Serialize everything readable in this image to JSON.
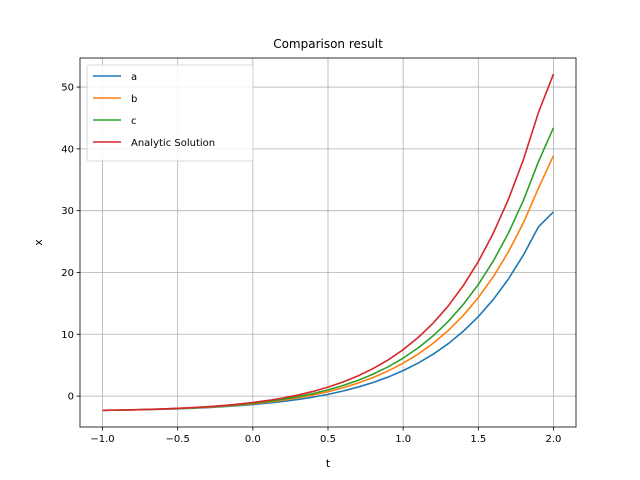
{
  "chart_data": {
    "type": "line",
    "title": "Comparison result",
    "xlabel": "t",
    "ylabel": "x",
    "xlim": [
      -1.15,
      2.15
    ],
    "ylim": [
      -5.0,
      54.7
    ],
    "xticks": [
      -1.0,
      -0.5,
      0.0,
      0.5,
      1.0,
      1.5,
      2.0
    ],
    "xtick_labels": [
      "−1.0",
      "−0.5",
      "0.0",
      "0.5",
      "1.0",
      "1.5",
      "2.0"
    ],
    "yticks": [
      0,
      10,
      20,
      30,
      40,
      50
    ],
    "ytick_labels": [
      "0",
      "10",
      "20",
      "30",
      "40",
      "50"
    ],
    "grid": true,
    "legend_position": "top-left",
    "series": [
      {
        "name": "a",
        "color": "#1f77b4",
        "x": [
          -1.0,
          -0.9,
          -0.8,
          -0.7,
          -0.6,
          -0.5,
          -0.4,
          -0.3,
          -0.2,
          -0.1,
          0.0,
          0.1,
          0.2,
          0.3,
          0.4,
          0.5,
          0.6,
          0.7,
          0.8,
          0.9,
          1.0,
          1.1,
          1.2,
          1.3,
          1.4,
          1.5,
          1.6,
          1.7,
          1.8,
          1.9,
          2.0
        ],
        "values": [
          -2.3,
          -2.27,
          -2.23,
          -2.18,
          -2.12,
          -2.05,
          -1.96,
          -1.85,
          -1.72,
          -1.56,
          -1.37,
          -1.14,
          -0.87,
          -0.55,
          -0.17,
          0.28,
          0.82,
          1.46,
          2.2,
          3.08,
          4.12,
          5.34,
          6.78,
          8.48,
          10.49,
          12.85,
          15.64,
          18.93,
          22.81,
          27.38,
          29.8
        ]
      },
      {
        "name": "b",
        "color": "#ff7f0e",
        "x": [
          -1.0,
          -0.9,
          -0.8,
          -0.7,
          -0.6,
          -0.5,
          -0.4,
          -0.3,
          -0.2,
          -0.1,
          0.0,
          0.1,
          0.2,
          0.3,
          0.4,
          0.5,
          0.6,
          0.7,
          0.8,
          0.9,
          1.0,
          1.1,
          1.2,
          1.3,
          1.4,
          1.5,
          1.6,
          1.7,
          1.8,
          1.9,
          2.0
        ],
        "values": [
          -2.3,
          -2.27,
          -2.23,
          -2.17,
          -2.1,
          -2.02,
          -1.92,
          -1.8,
          -1.65,
          -1.47,
          -1.25,
          -0.98,
          -0.66,
          -0.28,
          0.17,
          0.71,
          1.35,
          2.11,
          3.01,
          4.07,
          5.32,
          6.8,
          8.55,
          10.61,
          13.05,
          15.93,
          19.32,
          23.32,
          28.04,
          33.61,
          38.9
        ]
      },
      {
        "name": "c",
        "color": "#2ca02c",
        "x": [
          -1.0,
          -0.9,
          -0.8,
          -0.7,
          -0.6,
          -0.5,
          -0.4,
          -0.3,
          -0.2,
          -0.1,
          0.0,
          0.1,
          0.2,
          0.3,
          0.4,
          0.5,
          0.6,
          0.7,
          0.8,
          0.9,
          1.0,
          1.1,
          1.2,
          1.3,
          1.4,
          1.5,
          1.6,
          1.7,
          1.8,
          1.9,
          2.0
        ],
        "values": [
          -2.3,
          -2.27,
          -2.22,
          -2.16,
          -2.09,
          -2.0,
          -1.89,
          -1.76,
          -1.6,
          -1.4,
          -1.16,
          -0.87,
          -0.52,
          -0.1,
          0.4,
          1.0,
          1.71,
          2.55,
          3.55,
          4.74,
          6.14,
          7.8,
          9.76,
          12.08,
          14.82,
          18.05,
          21.86,
          26.35,
          31.65,
          37.9,
          43.4
        ]
      },
      {
        "name": "Analytic Solution",
        "color": "#d62728",
        "x": [
          -1.0,
          -0.9,
          -0.8,
          -0.7,
          -0.6,
          -0.5,
          -0.4,
          -0.3,
          -0.2,
          -0.1,
          0.0,
          0.1,
          0.2,
          0.3,
          0.4,
          0.5,
          0.6,
          0.7,
          0.8,
          0.9,
          1.0,
          1.1,
          1.2,
          1.3,
          1.4,
          1.5,
          1.6,
          1.7,
          1.8,
          1.9,
          2.0
        ],
        "values": [
          -2.3,
          -2.27,
          -2.22,
          -2.16,
          -2.08,
          -1.98,
          -1.86,
          -1.71,
          -1.53,
          -1.31,
          -1.04,
          -0.71,
          -0.31,
          0.17,
          0.75,
          1.45,
          2.28,
          3.27,
          4.45,
          5.85,
          7.51,
          9.48,
          11.82,
          14.59,
          17.87,
          21.76,
          26.37,
          31.81,
          38.25,
          45.86,
          52.1
        ]
      }
    ]
  }
}
